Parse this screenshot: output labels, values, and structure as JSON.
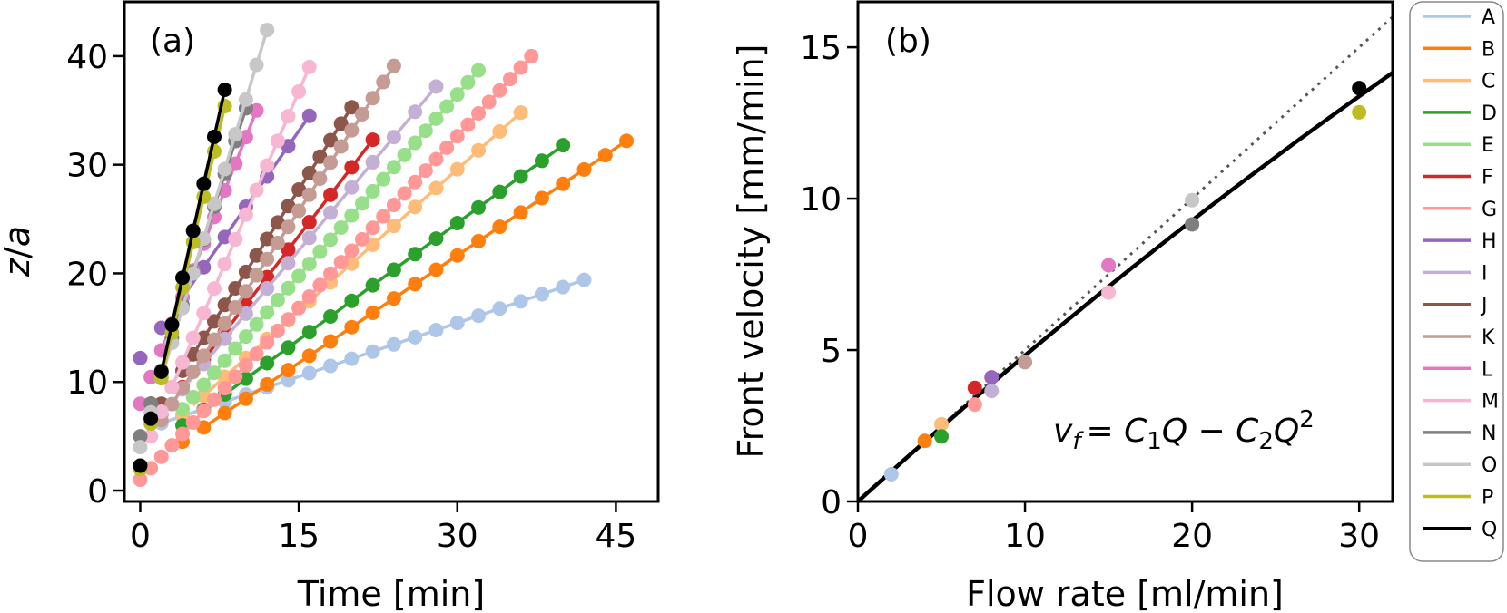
{
  "chart_data": [
    {
      "type": "scatter",
      "panel_label": "(a)",
      "xlabel": "Time [min]",
      "ylabel_parts": {
        "var": "z",
        "sep": "/",
        "den": "a"
      },
      "xlim": [
        -1.5,
        49
      ],
      "ylim": [
        -1,
        45
      ],
      "xticks": [
        0,
        15,
        30,
        45
      ],
      "yticks": [
        0,
        10,
        20,
        30,
        40
      ],
      "xticklabels": [
        "0",
        "15",
        "30",
        "45"
      ],
      "yticklabels": [
        "0",
        "10",
        "20",
        "30",
        "40"
      ],
      "series": [
        {
          "name": "A",
          "color": "#aec7e8",
          "t0": 2,
          "t1": 42,
          "dt": 2,
          "z0": 6.2,
          "z1": 19.4,
          "fit_from": 2
        },
        {
          "name": "B",
          "color": "#ff7f0e",
          "t0": 4,
          "t1": 46,
          "dt": 2,
          "z0": 4.5,
          "z1": 32.2,
          "fit_from": 6
        },
        {
          "name": "C",
          "color": "#ffbb78",
          "t0": 4,
          "t1": 36,
          "dt": 2,
          "z0": 7.0,
          "z1": 34.8,
          "fit_from": 5
        },
        {
          "name": "D",
          "color": "#2ca02c",
          "t0": 4,
          "t1": 40,
          "dt": 2,
          "z0": 6.0,
          "z1": 31.8,
          "fit_from": 7
        },
        {
          "name": "E",
          "color": "#98df8a",
          "t0": 4,
          "t1": 32,
          "dt": 1,
          "z0": 7.5,
          "z1": 38.7,
          "fit_from": 6
        },
        {
          "name": "F",
          "color": "#d62728",
          "t0": 2,
          "t1": 22,
          "dt": 2,
          "z0": 7.0,
          "z1": 32.3,
          "fit_from": 4
        },
        {
          "name": "G",
          "color": "#ff9896",
          "t0": 0,
          "t1": 37,
          "dt": 1,
          "z0": 1.0,
          "z1": 40.0,
          "fit_from": 3
        },
        {
          "name": "H",
          "color": "#9467bd",
          "t0": 0,
          "t1": 16,
          "dt": 2,
          "z0": 12.2,
          "z1": 34.5,
          "fit_from": 4
        },
        {
          "name": "I",
          "color": "#c5b0d5",
          "t0": 2,
          "t1": 28,
          "dt": 2,
          "z0": 7.0,
          "z1": 37.2,
          "fit_from": 4
        },
        {
          "name": "J",
          "color": "#8c564b",
          "t0": 2,
          "t1": 20,
          "dt": 1,
          "z0": 8.0,
          "z1": 35.3,
          "fit_from": 4
        },
        {
          "name": "K",
          "color": "#c49c94",
          "t0": 1,
          "t1": 24,
          "dt": 1,
          "z0": 5.0,
          "z1": 39.1,
          "fit_from": 3
        },
        {
          "name": "L",
          "color": "#e377c2",
          "t0": 0,
          "t1": 11,
          "dt": 1,
          "z0": 8.0,
          "z1": 35.0,
          "fit_from": 2
        },
        {
          "name": "M",
          "color": "#f7b6d2",
          "t0": 1,
          "t1": 16,
          "dt": 1,
          "z0": 5.0,
          "z1": 39.0,
          "fit_from": 3
        },
        {
          "name": "N",
          "color": "#7f7f7f",
          "t0": 0,
          "t1": 10,
          "dt": 1,
          "z0": 5.0,
          "z1": 35.2,
          "fit_from": 2
        },
        {
          "name": "O",
          "color": "#c7c7c7",
          "t0": 0,
          "t1": 12,
          "dt": 1,
          "z0": 4.0,
          "z1": 42.4,
          "fit_from": 2
        },
        {
          "name": "P",
          "color": "#bcbd22",
          "t0": 0,
          "t1": 8,
          "dt": 1,
          "z0": 2.0,
          "z1": 35.4,
          "fit_from": 2
        },
        {
          "name": "Q",
          "color": "#000000",
          "t0": 0,
          "t1": 8,
          "dt": 1,
          "z0": 2.3,
          "z1": 36.9,
          "fit_from": 2
        }
      ]
    },
    {
      "type": "scatter",
      "panel_label": "(b)",
      "xlabel": "Flow rate [ml/min]",
      "ylabel": "Front velocity [mm/min]",
      "xlim": [
        0,
        32
      ],
      "ylim": [
        0,
        16.5
      ],
      "xticks": [
        0,
        10,
        20,
        30
      ],
      "yticks": [
        0,
        5,
        10,
        15
      ],
      "xticklabels": [
        "0",
        "10",
        "20",
        "30"
      ],
      "yticklabels": [
        "0",
        "5",
        "10",
        "15"
      ],
      "annotation_parts": {
        "lhs": "v",
        "lhs_sub": "f",
        "eq": "= ",
        "c1": "C",
        "c1_sub": "1",
        "q1": "Q",
        "minus": " − ",
        "c2": "C",
        "c2_sub": "2",
        "q2": "Q",
        "q2_sup": "2"
      },
      "fit_curve": {
        "C1": 0.5,
        "C2": 0.0018,
        "color": "#000000",
        "style": "solid"
      },
      "linear_curve": {
        "slope": 0.5,
        "color": "#555555",
        "style": "dotted"
      },
      "points": [
        {
          "name": "A",
          "x": 2,
          "y": 0.9,
          "color": "#aec7e8"
        },
        {
          "name": "B",
          "x": 4,
          "y": 2.0,
          "color": "#ff7f0e"
        },
        {
          "name": "C",
          "x": 5,
          "y": 2.55,
          "color": "#ffbb78"
        },
        {
          "name": "D",
          "x": 5,
          "y": 2.15,
          "color": "#2ca02c"
        },
        {
          "name": "F",
          "x": 7,
          "y": 3.75,
          "color": "#d62728"
        },
        {
          "name": "G",
          "x": 7,
          "y": 3.2,
          "color": "#ff9896"
        },
        {
          "name": "H",
          "x": 8,
          "y": 4.1,
          "color": "#9467bd"
        },
        {
          "name": "I",
          "x": 8,
          "y": 3.65,
          "color": "#c5b0d5"
        },
        {
          "name": "K",
          "x": 10,
          "y": 4.6,
          "color": "#c49c94"
        },
        {
          "name": "L",
          "x": 15,
          "y": 7.8,
          "color": "#e377c2"
        },
        {
          "name": "M",
          "x": 15,
          "y": 6.9,
          "color": "#f7b6d2"
        },
        {
          "name": "O",
          "x": 20,
          "y": 9.95,
          "color": "#c7c7c7"
        },
        {
          "name": "N",
          "x": 20,
          "y": 9.15,
          "color": "#7f7f7f"
        },
        {
          "name": "P",
          "x": 30,
          "y": 12.85,
          "color": "#bcbd22"
        },
        {
          "name": "Q",
          "x": 30,
          "y": 13.65,
          "color": "#000000"
        }
      ]
    }
  ],
  "legend": {
    "placement": "right",
    "entries": [
      {
        "label": "A",
        "color": "#aec7e8"
      },
      {
        "label": "B",
        "color": "#ff7f0e"
      },
      {
        "label": "C",
        "color": "#ffbb78"
      },
      {
        "label": "D",
        "color": "#2ca02c"
      },
      {
        "label": "E",
        "color": "#98df8a"
      },
      {
        "label": "F",
        "color": "#d62728"
      },
      {
        "label": "G",
        "color": "#ff9896"
      },
      {
        "label": "H",
        "color": "#9467bd"
      },
      {
        "label": "I",
        "color": "#c5b0d5"
      },
      {
        "label": "J",
        "color": "#8c564b"
      },
      {
        "label": "K",
        "color": "#c49c94"
      },
      {
        "label": "L",
        "color": "#e377c2"
      },
      {
        "label": "M",
        "color": "#f7b6d2"
      },
      {
        "label": "N",
        "color": "#7f7f7f"
      },
      {
        "label": "O",
        "color": "#c7c7c7"
      },
      {
        "label": "P",
        "color": "#bcbd22"
      },
      {
        "label": "Q",
        "color": "#000000"
      }
    ]
  }
}
